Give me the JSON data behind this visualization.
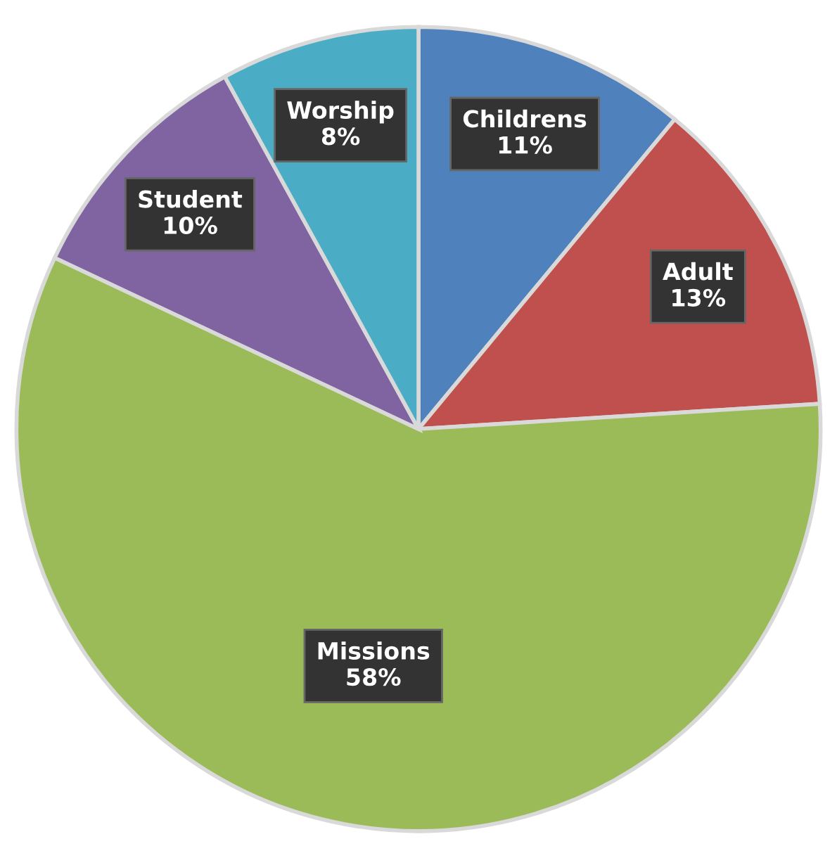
{
  "chart_data": {
    "type": "pie",
    "categories": [
      "Childrens",
      "Adult",
      "Missions",
      "Student",
      "Worship"
    ],
    "values": [
      11,
      13,
      58,
      10,
      8
    ],
    "colors": [
      "#4f81bd",
      "#c0504d",
      "#9bbb59",
      "#8064a2",
      "#4bacc6"
    ],
    "value_labels": [
      "11%",
      "13%",
      "58%",
      "10%",
      "8%"
    ]
  }
}
